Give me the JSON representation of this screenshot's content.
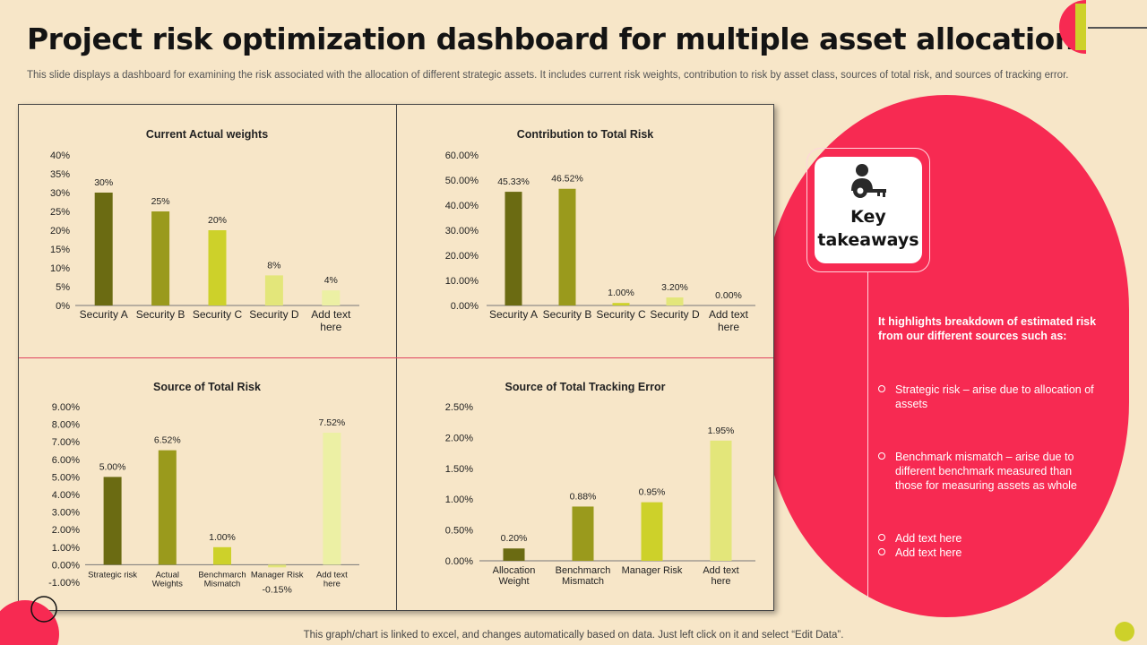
{
  "header": {
    "title": "Project risk optimization dashboard for multiple asset allocation",
    "subtitle": "This slide displays a dashboard for examining the risk associated with the allocation of different strategic assets. It includes current risk weights, contribution to risk by asset class, sources of total risk, and sources of tracking error."
  },
  "colors": {
    "dark_olive": "#6b6b12",
    "olive": "#9a9a1c",
    "lime": "#cdd12a",
    "light_lime": "#e3e67a",
    "pale_lime": "#ecf0a4",
    "red": "#f72a52",
    "background": "#f7e6c8"
  },
  "chart_data": [
    {
      "type": "bar",
      "title": "Current Actual weights",
      "categories": [
        "Security A",
        "Security B",
        "Security C",
        "Security D",
        "Add text here"
      ],
      "values": [
        30,
        25,
        20,
        8,
        4
      ],
      "value_labels": [
        "30%",
        "25%",
        "20%",
        "8%",
        "4%"
      ],
      "yticks": [
        "0%",
        "5%",
        "10%",
        "15%",
        "20%",
        "25%",
        "30%",
        "35%",
        "40%"
      ],
      "ylim": [
        0,
        40
      ],
      "xlabel": "",
      "ylabel": ""
    },
    {
      "type": "bar",
      "title": "Contribution to Total Risk",
      "categories": [
        "Security A",
        "Security B",
        "Security C",
        "Security D",
        "Add text here"
      ],
      "values": [
        45.33,
        46.52,
        1.0,
        3.2,
        0.0
      ],
      "value_labels": [
        "45.33%",
        "46.52%",
        "1.00%",
        "3.20%",
        "0.00%"
      ],
      "yticks": [
        "0.00%",
        "10.00%",
        "20.00%",
        "30.00%",
        "40.00%",
        "50.00%",
        "60.00%"
      ],
      "ylim": [
        0,
        60
      ],
      "xlabel": "",
      "ylabel": ""
    },
    {
      "type": "bar",
      "title": "Source of Total Risk",
      "categories": [
        "Strategic risk",
        "Actual Weights",
        "Benchmarch Mismatch",
        "Manager Risk",
        "Add text here"
      ],
      "values": [
        5.0,
        6.52,
        1.0,
        -0.15,
        7.52
      ],
      "value_labels": [
        "5.00%",
        "6.52%",
        "1.00%",
        "-0.15%",
        "7.52%"
      ],
      "yticks": [
        "-1.00%",
        "0.00%",
        "1.00%",
        "2.00%",
        "3.00%",
        "4.00%",
        "5.00%",
        "6.00%",
        "7.00%",
        "8.00%",
        "9.00%"
      ],
      "ylim": [
        -1,
        9
      ],
      "xlabel": "",
      "ylabel": ""
    },
    {
      "type": "bar",
      "title": "Source of Total Tracking Error",
      "categories": [
        "Allocation Weight",
        "Benchmarch Mismatch",
        "Manager Risk",
        "Add text here"
      ],
      "values": [
        0.2,
        0.88,
        0.95,
        1.95
      ],
      "value_labels": [
        "0.20%",
        "0.88%",
        "0.95%",
        "1.95%"
      ],
      "yticks": [
        "0.00%",
        "0.50%",
        "1.00%",
        "1.50%",
        "2.00%",
        "2.50%"
      ],
      "ylim": [
        0,
        2.5
      ],
      "xlabel": "",
      "ylabel": ""
    }
  ],
  "takeaways": {
    "line1": "Key",
    "line2": "takeaways",
    "icon": "person-key-icon",
    "highlight": "It highlights breakdown of estimated risk from our different sources such as:",
    "bullets": [
      "Strategic risk – arise due to allocation of assets",
      "Benchmark mismatch – arise due to different benchmark measured than those for measuring assets as whole",
      "Add text here",
      "Add text here"
    ]
  },
  "footer": {
    "note": "This graph/chart is linked to excel,  and changes automatically based on data. Just left click on it and select “Edit Data”."
  }
}
